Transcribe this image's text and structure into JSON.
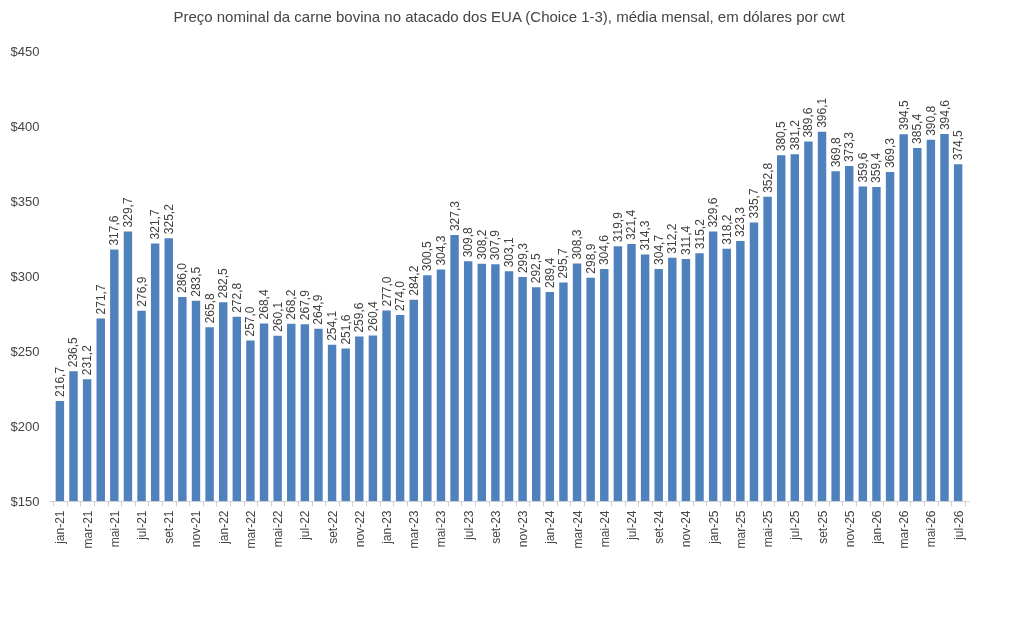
{
  "chart_data": {
    "type": "bar",
    "title": "Preço nominal da carne bovina no atacado dos EUA (Choice 1-3), média mensal, em dólares por cwt",
    "categories": [
      "jan-21",
      null,
      "mar-21",
      null,
      "mai-21",
      null,
      "jul-21",
      null,
      "set-21",
      null,
      "nov-21",
      null,
      "jan-22",
      null,
      "mar-22",
      null,
      "mai-22",
      null,
      "jul-22",
      null,
      "set-22",
      null,
      "nov-22",
      null,
      "jan-23",
      null,
      "mar-23",
      null,
      "mai-23",
      null,
      "jul-23",
      null,
      "set-23",
      null,
      "nov-23",
      null,
      "jan-24",
      null,
      "mar-24",
      null,
      "mai-24",
      null,
      "jul-24",
      null,
      "set-24",
      null,
      "nov-24",
      null,
      "jan-25",
      null,
      "mar-25",
      null,
      "mai-25",
      null,
      "jul-25",
      null,
      "set-25",
      null,
      "nov-25",
      null,
      "jan-26",
      null,
      "mar-26",
      null,
      "mai-26",
      null,
      "jul-26"
    ],
    "values": [
      216.7,
      236.5,
      231.2,
      271.7,
      317.6,
      329.7,
      276.9,
      321.7,
      325.2,
      286.0,
      283.5,
      265.8,
      282.5,
      272.8,
      257.0,
      268.4,
      260.1,
      268.2,
      267.9,
      264.9,
      254.1,
      251.6,
      259.6,
      260.4,
      277.0,
      274.0,
      284.2,
      300.5,
      304.3,
      327.3,
      309.8,
      308.2,
      307.9,
      303.1,
      299.3,
      292.5,
      289.4,
      295.7,
      308.3,
      298.9,
      304.6,
      319.9,
      321.4,
      314.3,
      304.7,
      312.2,
      311.4,
      315.2,
      329.6,
      318.2,
      323.3,
      335.7,
      352.8,
      380.5,
      381.2,
      389.6,
      396.1,
      369.8,
      373.3,
      359.6,
      359.4,
      369.3,
      394.5,
      385.4,
      390.8,
      394.6,
      374.5
    ],
    "value_labels": [
      "216,7",
      "236,5",
      "231,2",
      "271,7",
      "317,6",
      "329,7",
      "276,9",
      "321,7",
      "325,2",
      "286,0",
      "283,5",
      "265,8",
      "282,5",
      "272,8",
      "257,0",
      "268,4",
      "260,1",
      "268,2",
      "267,9",
      "264,9",
      "254,1",
      "251,6",
      "259,6",
      "260,4",
      "277,0",
      "274,0",
      "284,2",
      "300,5",
      "304,3",
      "327,3",
      "309,8",
      "308,2",
      "307,9",
      "303,1",
      "299,3",
      "292,5",
      "289,4",
      "295,7",
      "308,3",
      "298,9",
      "304,6",
      "319,9",
      "321,4",
      "314,3",
      "304,7",
      "312,2",
      "311,4",
      "315,2",
      "329,6",
      "318,2",
      "323,3",
      "335,7",
      "352,8",
      "380,5",
      "381,2",
      "389,6",
      "396,1",
      "369,8",
      "373,3",
      "359,6",
      "359,4",
      "369,3",
      "394,5",
      "385,4",
      "390,8",
      "394,6",
      "374,5"
    ],
    "color": "#4f81bd",
    "ylim": [
      150,
      450
    ],
    "yticks": [
      {
        "value": 150,
        "label": "$150"
      },
      {
        "value": 200,
        "label": "$200"
      },
      {
        "value": 250,
        "label": "$250"
      },
      {
        "value": 300,
        "label": "$300"
      },
      {
        "value": 350,
        "label": "$350"
      },
      {
        "value": 400,
        "label": "$400"
      },
      {
        "value": 450,
        "label": "$450"
      }
    ],
    "grid": false
  }
}
